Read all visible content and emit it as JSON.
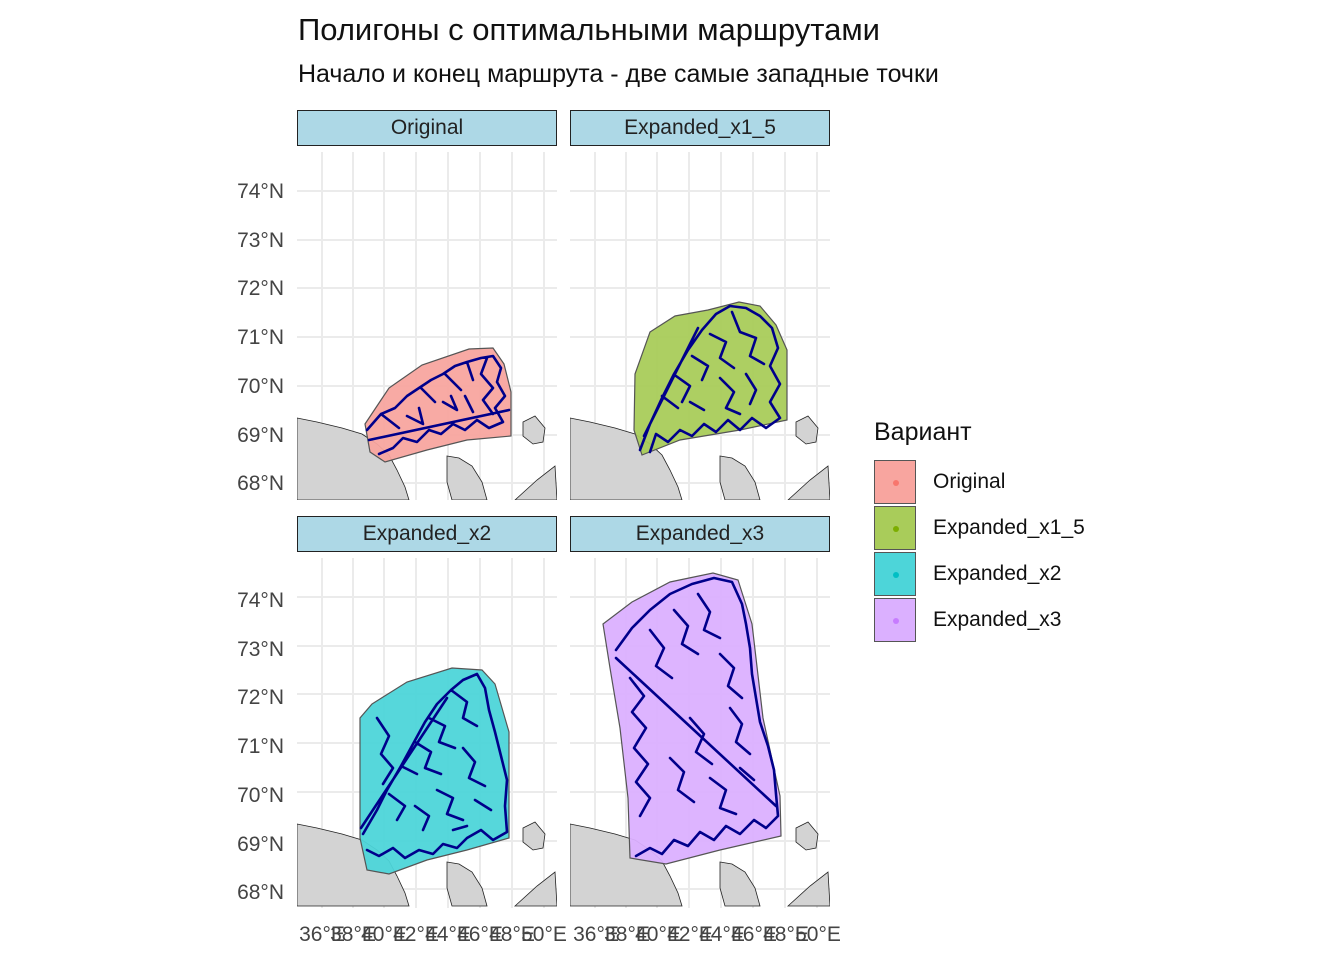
{
  "title": "Полигоны с оптимальными маршрутами",
  "subtitle": "Начало и конец маршрута - две самые западные точки",
  "legend": {
    "title": "Вариант",
    "items": [
      {
        "label": "Original",
        "fill": "#f8a59f",
        "dot": "#f8766d"
      },
      {
        "label": "Expanded_x1_5",
        "fill": "#a9cc5a",
        "dot": "#7cae00"
      },
      {
        "label": "Expanded_x2",
        "fill": "#4dd5d9",
        "dot": "#00bfc4"
      },
      {
        "label": "Expanded_x3",
        "fill": "#dbb0ff",
        "dot": "#c77cff"
      }
    ]
  },
  "panels": [
    {
      "label": "Original",
      "fill": "#f8a59f"
    },
    {
      "label": "Expanded_x1_5",
      "fill": "#a9cc5a"
    },
    {
      "label": "Expanded_x2",
      "fill": "#4dd5d9"
    },
    {
      "label": "Expanded_x3",
      "fill": "#dbb0ff"
    }
  ],
  "axes": {
    "y_ticks": [
      "74°N",
      "73°N",
      "72°N",
      "71°N",
      "70°N",
      "69°N",
      "68°N"
    ],
    "x_ticks": [
      "36°E",
      "38°E",
      "40°E",
      "42°E",
      "44°E",
      "46°E",
      "48°E",
      "50°E"
    ]
  },
  "colors": {
    "route": "#00008b",
    "land": "#d3d3d3",
    "grid": "#ebebeb",
    "strip": "#add8e6"
  }
}
